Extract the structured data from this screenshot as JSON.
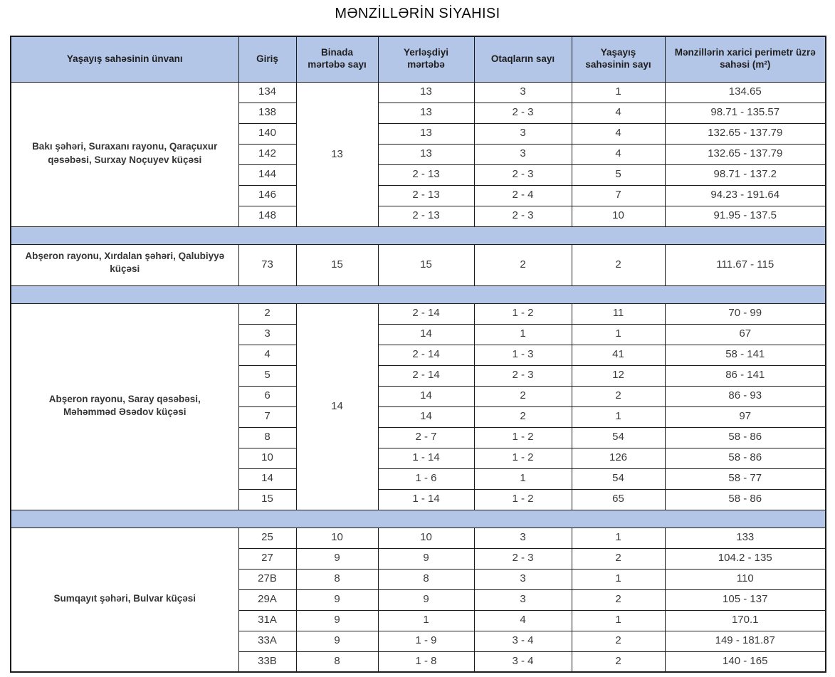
{
  "title": "MƏNZİLLƏRİN SİYAHISI",
  "colors": {
    "header_bg": "#b4c6e7",
    "separator_bg": "#b4c6e7",
    "border": "#1c1c1c",
    "text": "#3a3a3a"
  },
  "table": {
    "columns": [
      "Yaşayış sahəsinin ünvanı",
      "Giriş",
      "Binada mərtəbə sayı",
      "Yerləşdiyi mərtəbə",
      "Otaqların sayı",
      "Yaşayış sahəsinin sayı",
      "Mənzillərin xarici perimetr üzrə sahəsi (m²)"
    ],
    "groups": [
      {
        "address": "Bakı şəhəri, Suraxanı rayonu, Qaraçuxur qəsəbəsi, Surxay Noçuyev küçəsi",
        "shared_floor_count": "13",
        "rows": [
          {
            "entrance": "134",
            "building_floors": "",
            "located_floor": "13",
            "rooms": "3",
            "unit_count": "1",
            "area": "134.65"
          },
          {
            "entrance": "138",
            "building_floors": "",
            "located_floor": "13",
            "rooms": "2 - 3",
            "unit_count": "4",
            "area": "98.71 - 135.57"
          },
          {
            "entrance": "140",
            "building_floors": "",
            "located_floor": "13",
            "rooms": "3",
            "unit_count": "4",
            "area": "132.65 - 137.79"
          },
          {
            "entrance": "142",
            "building_floors": "",
            "located_floor": "13",
            "rooms": "3",
            "unit_count": "4",
            "area": "132.65 - 137.79"
          },
          {
            "entrance": "144",
            "building_floors": "",
            "located_floor": "2 - 13",
            "rooms": "2 - 3",
            "unit_count": "5",
            "area": "98.71 - 137.2"
          },
          {
            "entrance": "146",
            "building_floors": "",
            "located_floor": "2 - 13",
            "rooms": "2 - 4",
            "unit_count": "7",
            "area": "94.23 - 191.64"
          },
          {
            "entrance": "148",
            "building_floors": "",
            "located_floor": "2 - 13",
            "rooms": "2 - 3",
            "unit_count": "10",
            "area": "91.95 - 137.5"
          }
        ]
      },
      {
        "address": "Abşeron rayonu, Xırdalan şəhəri, Qalubiyyə küçəsi",
        "shared_floor_count": null,
        "rows": [
          {
            "entrance": "73",
            "building_floors": "15",
            "located_floor": "15",
            "rooms": "2",
            "unit_count": "2",
            "area": "111.67 - 115"
          }
        ]
      },
      {
        "address": "Abşeron rayonu, Saray qəsəbəsi, Məhəmməd Əsədov küçəsi",
        "shared_floor_count": "14",
        "rows": [
          {
            "entrance": "2",
            "building_floors": "",
            "located_floor": "2 - 14",
            "rooms": "1 - 2",
            "unit_count": "11",
            "area": "70 - 99"
          },
          {
            "entrance": "3",
            "building_floors": "",
            "located_floor": "14",
            "rooms": "1",
            "unit_count": "1",
            "area": "67"
          },
          {
            "entrance": "4",
            "building_floors": "",
            "located_floor": "2 - 14",
            "rooms": "1 - 3",
            "unit_count": "41",
            "area": "58 - 141"
          },
          {
            "entrance": "5",
            "building_floors": "",
            "located_floor": "2 - 14",
            "rooms": "2 - 3",
            "unit_count": "12",
            "area": "86 - 141"
          },
          {
            "entrance": "6",
            "building_floors": "",
            "located_floor": "14",
            "rooms": "2",
            "unit_count": "2",
            "area": "86 - 93"
          },
          {
            "entrance": "7",
            "building_floors": "",
            "located_floor": "14",
            "rooms": "2",
            "unit_count": "1",
            "area": "97"
          },
          {
            "entrance": "8",
            "building_floors": "",
            "located_floor": "2 - 7",
            "rooms": "1 - 2",
            "unit_count": "54",
            "area": "58 - 86"
          },
          {
            "entrance": "10",
            "building_floors": "",
            "located_floor": "1 - 14",
            "rooms": "1 - 2",
            "unit_count": "126",
            "area": "58 - 86"
          },
          {
            "entrance": "14",
            "building_floors": "",
            "located_floor": "1 - 6",
            "rooms": "1",
            "unit_count": "54",
            "area": "58 - 77"
          },
          {
            "entrance": "15",
            "building_floors": "",
            "located_floor": "1 - 14",
            "rooms": "1 - 2",
            "unit_count": "65",
            "area": "58 - 86"
          }
        ]
      },
      {
        "address": "Sumqayıt şəhəri, Bulvar küçəsi",
        "shared_floor_count": null,
        "rows": [
          {
            "entrance": "25",
            "building_floors": "10",
            "located_floor": "10",
            "rooms": "3",
            "unit_count": "1",
            "area": "133"
          },
          {
            "entrance": "27",
            "building_floors": "9",
            "located_floor": "9",
            "rooms": "2 - 3",
            "unit_count": "2",
            "area": "104.2 - 135"
          },
          {
            "entrance": "27B",
            "building_floors": "8",
            "located_floor": "8",
            "rooms": "3",
            "unit_count": "1",
            "area": "110"
          },
          {
            "entrance": "29A",
            "building_floors": "9",
            "located_floor": "9",
            "rooms": "3",
            "unit_count": "2",
            "area": "105 - 137"
          },
          {
            "entrance": "31A",
            "building_floors": "9",
            "located_floor": "1",
            "rooms": "4",
            "unit_count": "1",
            "area": "170.1"
          },
          {
            "entrance": "33A",
            "building_floors": "9",
            "located_floor": "1 - 9",
            "rooms": "3 - 4",
            "unit_count": "2",
            "area": "149 - 181.87"
          },
          {
            "entrance": "33B",
            "building_floors": "8",
            "located_floor": "1 - 8",
            "rooms": "3 - 4",
            "unit_count": "2",
            "area": "140 - 165"
          }
        ]
      }
    ]
  }
}
